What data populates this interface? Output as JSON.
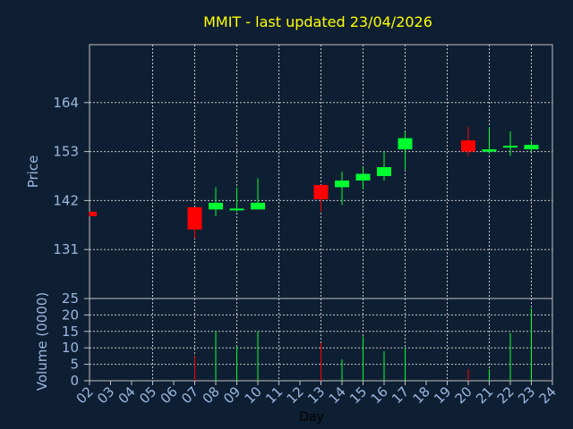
{
  "chart_data": {
    "type": "candlestick",
    "title": "MMIT - last updated 23/04/2026",
    "xlabel": "Day",
    "price_panel": {
      "ylabel": "Price",
      "ylim": [
        120,
        177
      ],
      "yticks": [
        131,
        142,
        153,
        164
      ],
      "grid": true
    },
    "volume_panel": {
      "ylabel": "Volume (0000)",
      "ylim": [
        0,
        25
      ],
      "yticks": [
        0,
        5,
        10,
        15,
        20,
        25
      ],
      "grid": true
    },
    "categories": [
      "02",
      "03",
      "04",
      "05",
      "06",
      "07",
      "08",
      "09",
      "10",
      "11",
      "12",
      "13",
      "14",
      "15",
      "16",
      "17",
      "18",
      "19",
      "20",
      "21",
      "22",
      "23",
      "24"
    ],
    "candles": [
      {
        "day": "02",
        "open": 139.5,
        "close": 138.5,
        "high": 139.5,
        "low": 138.5
      },
      {
        "day": "07",
        "open": 140.5,
        "close": 135.5,
        "high": 140.5,
        "low": 133.5
      },
      {
        "day": "08",
        "open": 140.0,
        "close": 141.5,
        "high": 145.0,
        "low": 138.5
      },
      {
        "day": "09",
        "open": 140.0,
        "close": 140.2,
        "high": 145.0,
        "low": 139.5
      },
      {
        "day": "10",
        "open": 140.0,
        "close": 141.5,
        "high": 147.0,
        "low": 140.0
      },
      {
        "day": "13",
        "open": 145.5,
        "close": 142.3,
        "high": 145.5,
        "low": 139.5
      },
      {
        "day": "14",
        "open": 145.0,
        "close": 146.5,
        "high": 148.5,
        "low": 141.0
      },
      {
        "day": "15",
        "open": 146.5,
        "close": 148.0,
        "high": 149.5,
        "low": 144.5
      },
      {
        "day": "16",
        "open": 147.5,
        "close": 149.5,
        "high": 153.0,
        "low": 146.5
      },
      {
        "day": "17",
        "open": 153.5,
        "close": 156.0,
        "high": 157.5,
        "low": 149.0
      },
      {
        "day": "20",
        "open": 155.5,
        "close": 153.0,
        "high": 158.5,
        "low": 152.0
      },
      {
        "day": "21",
        "open": 153.0,
        "close": 153.5,
        "high": 158.5,
        "low": 152.5
      },
      {
        "day": "22",
        "open": 154.0,
        "close": 154.3,
        "high": 157.5,
        "low": 152.0
      },
      {
        "day": "23",
        "open": 153.5,
        "close": 154.5,
        "high": 155.5,
        "low": 153.0
      }
    ],
    "volume": [
      {
        "day": "07",
        "value": 7.5
      },
      {
        "day": "08",
        "value": 15.0
      },
      {
        "day": "09",
        "value": 10.5
      },
      {
        "day": "10",
        "value": 15.0
      },
      {
        "day": "13",
        "value": 11.5
      },
      {
        "day": "14",
        "value": 6.5
      },
      {
        "day": "15",
        "value": 13.5
      },
      {
        "day": "16",
        "value": 9.0
      },
      {
        "day": "17",
        "value": 10.0
      },
      {
        "day": "20",
        "value": 3.5
      },
      {
        "day": "21",
        "value": 3.5
      },
      {
        "day": "22",
        "value": 14.5
      },
      {
        "day": "23",
        "value": 22.0
      }
    ],
    "colors": {
      "up": "#00ff30",
      "down": "#ff0000",
      "background": "#0f1f33",
      "grid": "#c8c8c8",
      "title": "#ffff00",
      "ticks": "#9ab8e0"
    }
  }
}
